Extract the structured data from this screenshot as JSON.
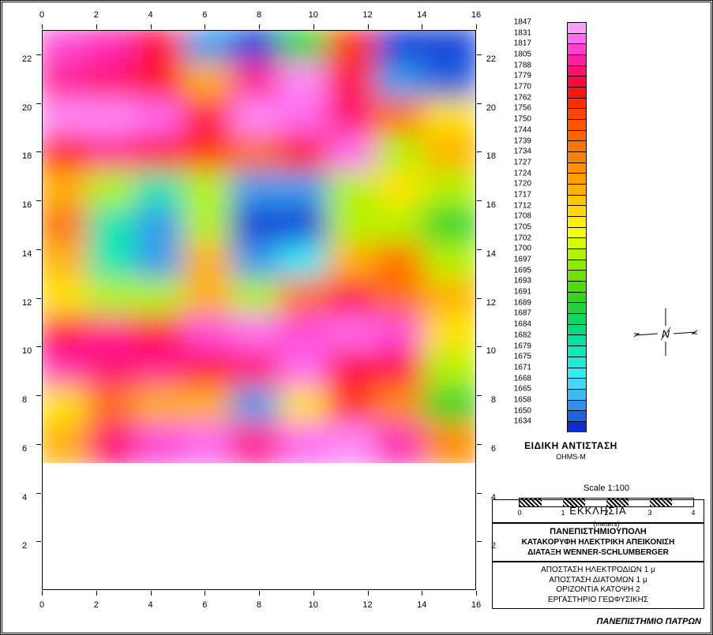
{
  "plot": {
    "type": "heatmap",
    "x_axis": {
      "min": 0,
      "max": 16,
      "tick_step": 2,
      "ticks": [
        0,
        2,
        4,
        6,
        8,
        10,
        12,
        14,
        16
      ]
    },
    "y_axis": {
      "min": 0,
      "max": 23,
      "tick_step": 2,
      "ticks": [
        2,
        4,
        6,
        8,
        10,
        12,
        14,
        16,
        18,
        20,
        22
      ]
    },
    "axis_fontsize": 11,
    "axis_color": "#000000",
    "background_color": "#ffffff",
    "grid_rows": 12,
    "grid_cols": 9,
    "value_min": 1634,
    "value_max": 1847,
    "cells": [
      [
        1820,
        1810,
        1780,
        1660,
        1640,
        1690,
        1760,
        1640,
        1640
      ],
      [
        1800,
        1790,
        1770,
        1720,
        1800,
        1840,
        1780,
        1660,
        1650
      ],
      [
        1840,
        1840,
        1830,
        1780,
        1840,
        1830,
        1790,
        1740,
        1710
      ],
      [
        1770,
        1800,
        1780,
        1760,
        1740,
        1770,
        1830,
        1700,
        1720
      ],
      [
        1720,
        1700,
        1680,
        1700,
        1660,
        1660,
        1700,
        1710,
        1700
      ],
      [
        1740,
        1680,
        1660,
        1700,
        1640,
        1640,
        1700,
        1700,
        1690
      ],
      [
        1720,
        1680,
        1660,
        1720,
        1660,
        1670,
        1720,
        1740,
        1700
      ],
      [
        1710,
        1700,
        1700,
        1720,
        1700,
        1740,
        1780,
        1740,
        1720
      ],
      [
        1780,
        1800,
        1780,
        1820,
        1830,
        1820,
        1830,
        1820,
        1710
      ],
      [
        1810,
        1790,
        1800,
        1780,
        1790,
        1830,
        1780,
        1780,
        1700
      ],
      [
        1710,
        1740,
        1720,
        1720,
        1660,
        1710,
        1760,
        1730,
        1690
      ],
      [
        1720,
        1790,
        1820,
        1830,
        1800,
        1830,
        1840,
        1810,
        1730
      ]
    ]
  },
  "colorbar": {
    "title": "ΕΙΔΙΚΗ ΑΝΤΙΣΤΑΣΗ",
    "subtitle": "OHMS-M",
    "stops": [
      {
        "v": 1847,
        "c": "#ff9eff"
      },
      {
        "v": 1831,
        "c": "#ff6cf1"
      },
      {
        "v": 1817,
        "c": "#ff3fce"
      },
      {
        "v": 1805,
        "c": "#ff1fa0"
      },
      {
        "v": 1788,
        "c": "#ff0f6e"
      },
      {
        "v": 1779,
        "c": "#ff0a40"
      },
      {
        "v": 1770,
        "c": "#ff1610"
      },
      {
        "v": 1762,
        "c": "#ff2e00"
      },
      {
        "v": 1756,
        "c": "#ff4300"
      },
      {
        "v": 1750,
        "c": "#ff5400"
      },
      {
        "v": 1744,
        "c": "#ff6400"
      },
      {
        "v": 1739,
        "c": "#ff7300"
      },
      {
        "v": 1734,
        "c": "#ff8200"
      },
      {
        "v": 1727,
        "c": "#ff9100"
      },
      {
        "v": 1724,
        "c": "#ffa000"
      },
      {
        "v": 1720,
        "c": "#ffb000"
      },
      {
        "v": 1717,
        "c": "#ffc400"
      },
      {
        "v": 1712,
        "c": "#ffd800"
      },
      {
        "v": 1708,
        "c": "#ffee00"
      },
      {
        "v": 1705,
        "c": "#f4ff00"
      },
      {
        "v": 1702,
        "c": "#d4fb00"
      },
      {
        "v": 1700,
        "c": "#b4f300"
      },
      {
        "v": 1697,
        "c": "#90eb00"
      },
      {
        "v": 1695,
        "c": "#6de300"
      },
      {
        "v": 1693,
        "c": "#4edb06"
      },
      {
        "v": 1691,
        "c": "#33d51e"
      },
      {
        "v": 1689,
        "c": "#1fd33e"
      },
      {
        "v": 1687,
        "c": "#10d55f"
      },
      {
        "v": 1684,
        "c": "#06da80"
      },
      {
        "v": 1682,
        "c": "#04e19f"
      },
      {
        "v": 1679,
        "c": "#0ae8bc"
      },
      {
        "v": 1675,
        "c": "#1aeeda"
      },
      {
        "v": 1671,
        "c": "#31edf2"
      },
      {
        "v": 1668,
        "c": "#3fd8f7"
      },
      {
        "v": 1665,
        "c": "#3eb8f2"
      },
      {
        "v": 1658,
        "c": "#3190ea"
      },
      {
        "v": 1650,
        "c": "#1f62e0"
      },
      {
        "v": 1634,
        "c": "#0b2ed2"
      }
    ]
  },
  "compass": {
    "present": true,
    "label": "N"
  },
  "scale": {
    "title": "Scale 1:100",
    "ticks": [
      0,
      1,
      2,
      3,
      4
    ],
    "unit": "(meters)"
  },
  "info_boxes": {
    "box1": "ΕΚΚΛΗΣΙΑ",
    "box2_line1": "ΠΑΝΕΠΙΣΤΗΜΙΟΥΠΟΛΗ",
    "box2_line2": "ΚΑΤΑΚΟΡΥΦΗ ΗΛΕΚΤΡΙΚΗ ΑΠΕΙΚΟΝΙΣΗ",
    "box2_line3": "ΔΙΑΤΑΞΗ  WENNER-SCHLUMBERGER",
    "box3_line1": "ΑΠΟΣΤΑΣΗ ΗΛΕΚΤΡΟΔΙΩΝ 1 μ",
    "box3_line2": "ΑΠΟΣΤΑΣΗ ΔΙΑΤΟΜΩΝ 1 μ",
    "box3_line3": "ΟΡΙΖΟΝΤΙΑ ΚΑΤΟΨΗ 2",
    "box3_line4": "ΕΡΓΑΣΤΗΡΙΟ ΓΕΩΦΥΣΙΚΗΣ"
  },
  "footer": "ΠΑΝΕΠΙΣΤΗΜΙΟ ΠΑΤΡΩΝ"
}
